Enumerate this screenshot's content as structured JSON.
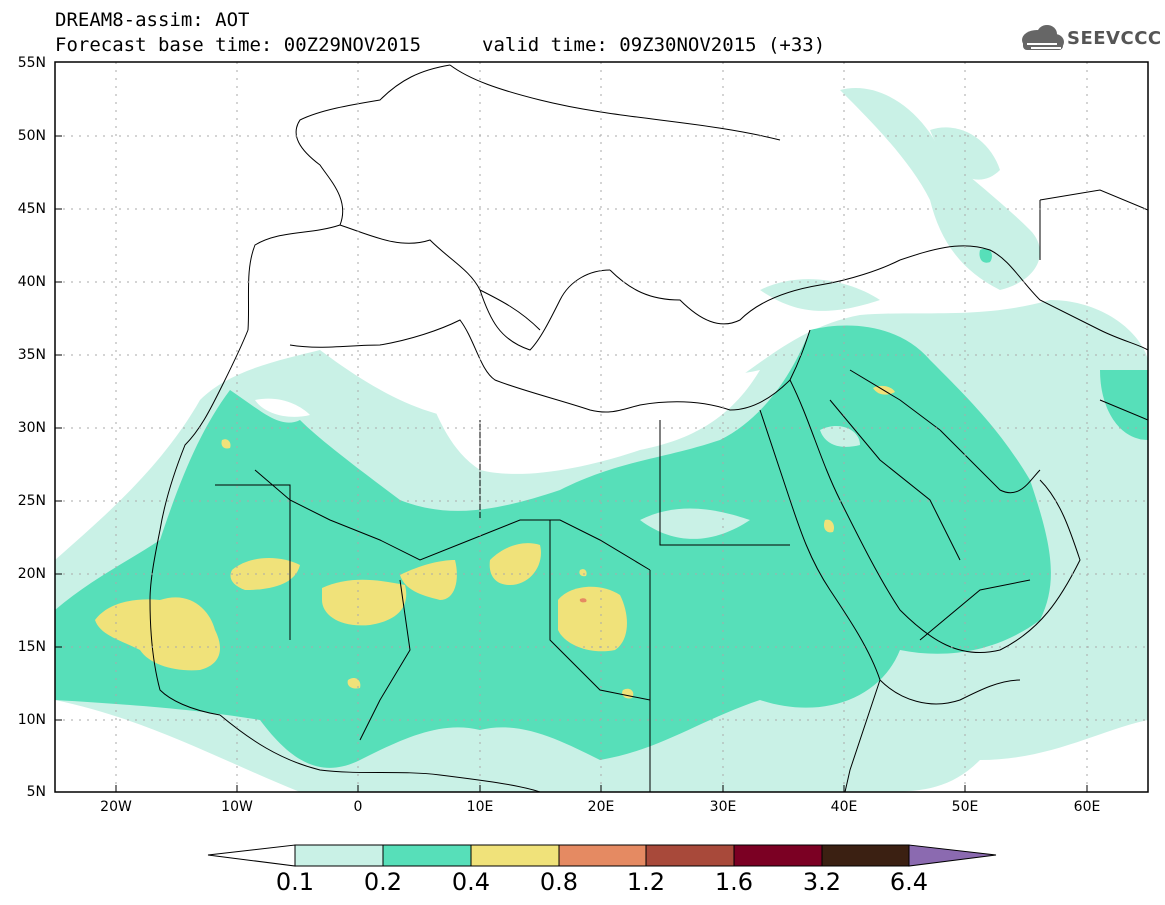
{
  "title": {
    "line1": "DREAM8-assim: AOT",
    "line2": "Forecast base time: 00Z29NOV2015",
    "valid_time": "valid time: 09Z30NOV2015 (+33)"
  },
  "logo": {
    "text": "SEEVCCC",
    "icon": "cloud-icon"
  },
  "map": {
    "latitude_labels": [
      "55N",
      "50N",
      "45N",
      "40N",
      "35N",
      "30N",
      "25N",
      "20N",
      "15N",
      "10N",
      "5N"
    ],
    "longitude_labels": [
      "20W",
      "10W",
      "0",
      "10E",
      "20E",
      "30E",
      "40E",
      "50E",
      "60E"
    ],
    "lat_range": [
      5,
      55
    ],
    "lon_range": [
      -25,
      65
    ],
    "gridlines": true
  },
  "colorbar": {
    "labels": [
      "0.1",
      "0.2",
      "0.4",
      "0.8",
      "1.2",
      "1.6",
      "3.2",
      "6.4"
    ],
    "colors": [
      "#ffffff",
      "#c9f1e6",
      "#57dfb9",
      "#f0e27a",
      "#e58a62",
      "#a8493a",
      "#7b0023",
      "#3b2012",
      "#8b6ab0"
    ]
  }
}
